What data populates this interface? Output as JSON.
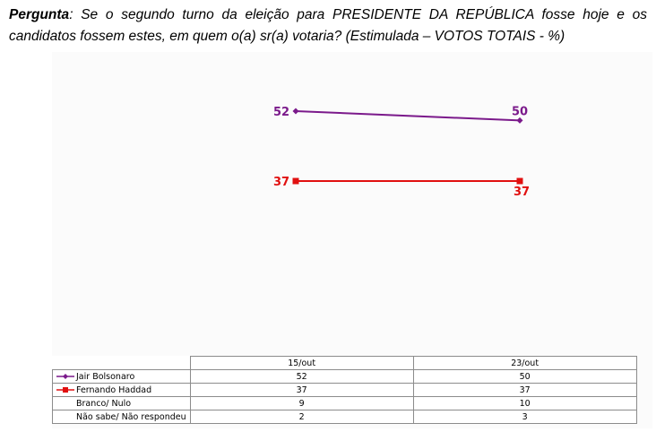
{
  "question": {
    "prefix": "Pergunta",
    "text": ": Se o segundo turno da eleição para PRESIDENTE DA REPÚBLICA fosse hoje e os candidatos fossem estes, em quem o(a) sr(a) votaria? (Estimulada – VOTOS TOTAIS - %)"
  },
  "colors": {
    "bolsonaro": "#7b1a8b",
    "haddad": "#e11010"
  },
  "chart_data": {
    "type": "line",
    "categories": [
      "15/out",
      "23/out"
    ],
    "series": [
      {
        "name": "Jair Bolsonaro",
        "values": [
          52,
          50
        ],
        "color": "#7b1a8b",
        "marker": "diamond",
        "plotted": true
      },
      {
        "name": "Fernando Haddad",
        "values": [
          37,
          37
        ],
        "color": "#e11010",
        "marker": "square",
        "plotted": true
      },
      {
        "name": "Branco/ Nulo",
        "values": [
          9,
          10
        ],
        "plotted": false
      },
      {
        "name": "Não sabe/ Não respondeu",
        "values": [
          2,
          3
        ],
        "plotted": false
      }
    ],
    "title": "",
    "xlabel": "",
    "ylabel": "",
    "grid": false,
    "data_table": true
  }
}
